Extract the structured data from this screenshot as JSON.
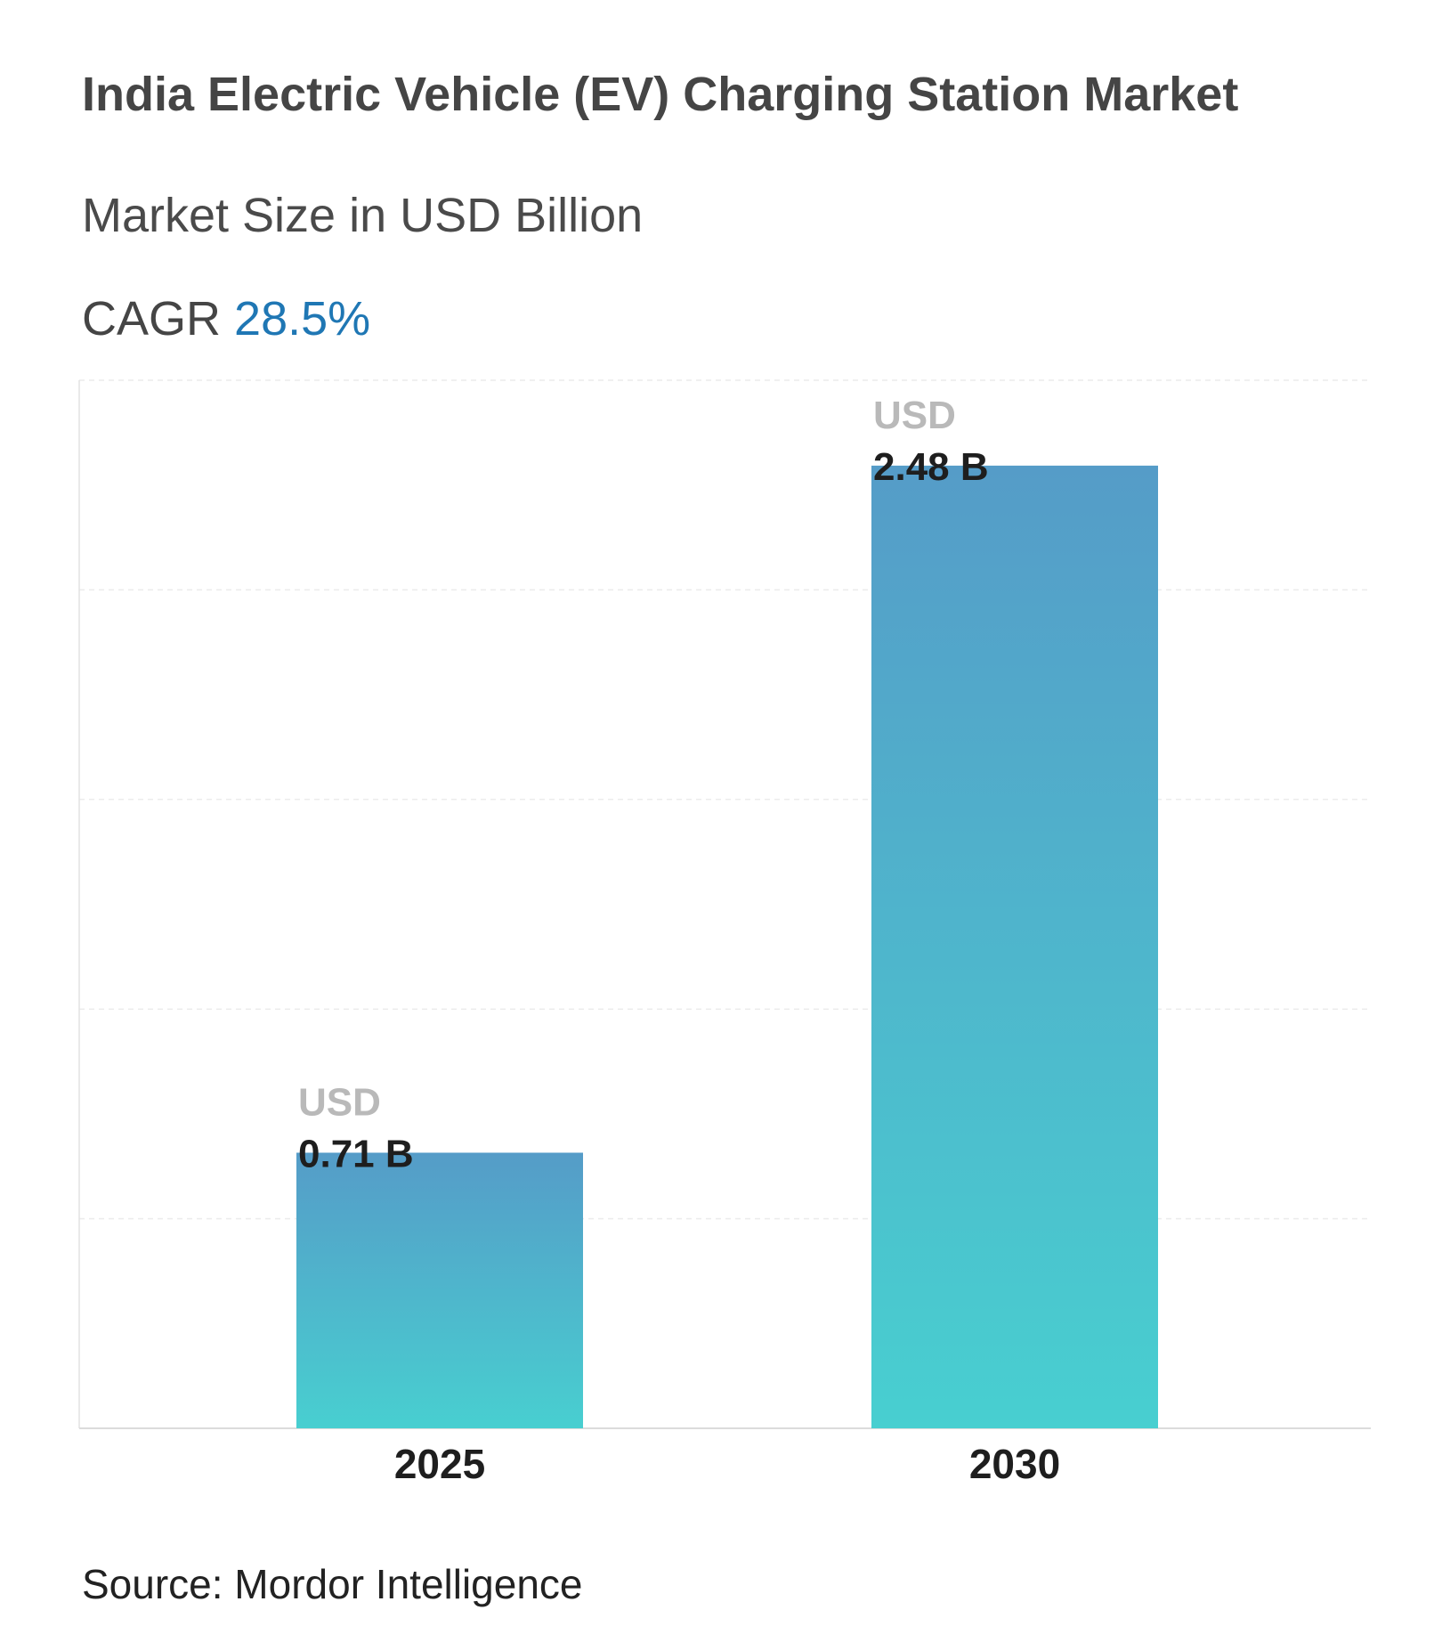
{
  "title": "India Electric Vehicle (EV) Charging Station Market",
  "subtitle": "Market Size in USD Billion",
  "cagr": {
    "label": "CAGR",
    "value": "28.5%"
  },
  "source": "Source: Mordor Intelligence",
  "colors": {
    "bar_top": "#559cc8",
    "bar_bottom": "#48cfd0",
    "cagr": "#1f77b4",
    "currency_label": "#b9b9b9"
  },
  "chart_data": {
    "type": "bar",
    "categories": [
      "2025",
      "2030"
    ],
    "values": [
      0.71,
      2.48
    ],
    "data_labels": [
      {
        "currency": "USD",
        "value": "0.71 B"
      },
      {
        "currency": "USD",
        "value": "2.48 B"
      }
    ],
    "title": "India Electric Vehicle (EV) Charging Station Market",
    "subtitle": "Market Size in USD Billion",
    "xlabel": "",
    "ylabel": "",
    "ylim": [
      0,
      2.7
    ],
    "grid": true,
    "y_tick_labels_shown": false
  }
}
